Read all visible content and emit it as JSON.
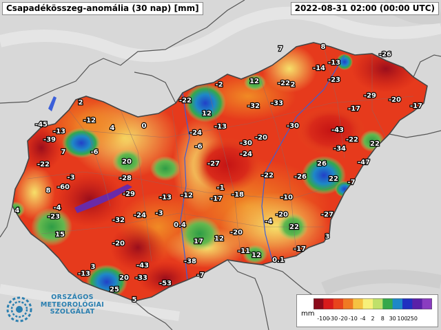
{
  "header": {
    "title": "Csapadékösszeg-anomália (30 nap) [mm]",
    "timestamp": "2022-08-31 02:00 (00:00 UTC)"
  },
  "logo": {
    "line1": "ORSZÁGOS",
    "line2": "METEOROLÓGIAI",
    "line3": "SZOLGÁLAT",
    "color": "#2a7fb0"
  },
  "legend": {
    "unit": "mm",
    "ticks": [
      "-100",
      "-30",
      "-20",
      "-10",
      "-4",
      "2",
      "8",
      "30",
      "100",
      "250"
    ],
    "colors": [
      "#8b0a1a",
      "#d81b1b",
      "#e8441c",
      "#f07a23",
      "#f5c242",
      "#f7f07a",
      "#bfe06a",
      "#35a84a",
      "#1e88c8",
      "#2030c0",
      "#5a20a8",
      "#8a3cc0"
    ]
  },
  "colors": {
    "background": "#dcdcdc",
    "river": "#3b5fd9",
    "border": "#555555"
  },
  "anomaly_values": [
    "-45",
    "-39",
    "-22",
    "-13",
    "-12",
    "4",
    "0",
    "2",
    "7",
    "-6",
    "20",
    "-3",
    "-60",
    "-28",
    "-29",
    "8",
    "4",
    "-4",
    "-23",
    "-32",
    "-24",
    "-3",
    "-13",
    "-12",
    "15",
    "-20",
    "-17",
    "-1",
    "-18",
    "0.4",
    "3",
    "-43",
    "-13",
    "20",
    "-33",
    "-38",
    "-53",
    "25",
    "5",
    "-7",
    "-22",
    "12",
    "-24",
    "-6",
    "-13",
    "-27",
    "-2",
    "12",
    "17",
    "12",
    "-20",
    "-30",
    "-24",
    "-22",
    "-11",
    "12",
    "0.1",
    "-32",
    "-33",
    "-22",
    "2",
    "-20",
    "-30",
    "-10",
    "-4",
    "-20",
    "22",
    "3",
    "-17",
    "7",
    "8",
    "-14",
    "-13",
    "-23",
    "-26",
    "-29",
    "-20",
    "-17",
    "-17",
    "-43",
    "-34",
    "-22",
    "22",
    "-47",
    "26",
    "-26",
    "22",
    "-7",
    "-27"
  ]
}
